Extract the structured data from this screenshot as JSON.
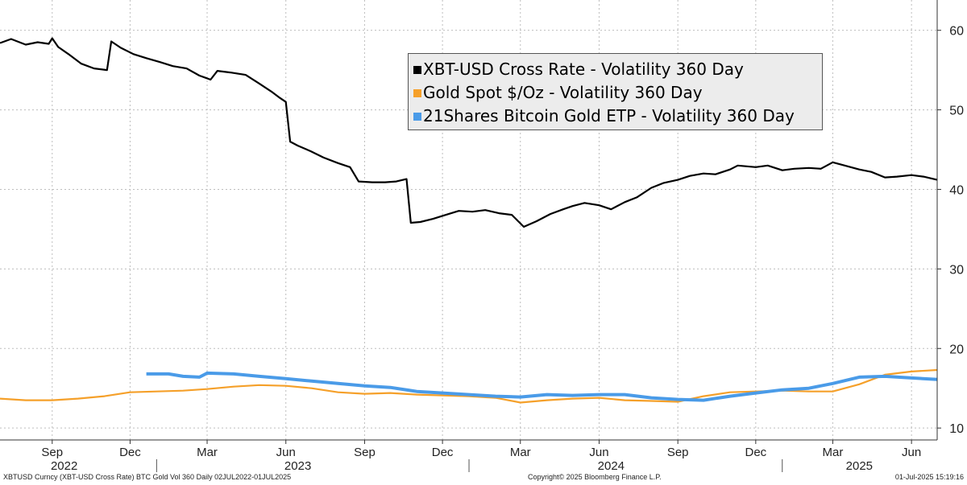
{
  "chart_data": {
    "type": "line",
    "ylim": [
      8.5,
      63
    ],
    "y_ticks": [
      "10",
      "20",
      "30",
      "40",
      "50",
      "60"
    ],
    "y_tick_values": [
      10,
      20,
      30,
      40,
      50,
      60
    ],
    "grid": true,
    "legend_position": "top-center",
    "x_start": "2022-07-02",
    "x_end": "2025-07-01",
    "x_month_ticks": [
      {
        "label": "Sep",
        "date": "2022-09-01"
      },
      {
        "label": "Dec",
        "date": "2022-12-01"
      },
      {
        "label": "Mar",
        "date": "2023-03-01"
      },
      {
        "label": "Jun",
        "date": "2023-06-01"
      },
      {
        "label": "Sep",
        "date": "2023-09-01"
      },
      {
        "label": "Dec",
        "date": "2023-12-01"
      },
      {
        "label": "Mar",
        "date": "2024-03-01"
      },
      {
        "label": "Jun",
        "date": "2024-06-01"
      },
      {
        "label": "Sep",
        "date": "2024-09-01"
      },
      {
        "label": "Dec",
        "date": "2024-12-01"
      },
      {
        "label": "Mar",
        "date": "2025-03-01"
      },
      {
        "label": "Jun",
        "date": "2025-06-01"
      }
    ],
    "x_year_labels": [
      {
        "label": "2022",
        "date": "2022-09-15"
      },
      {
        "label": "2023",
        "date": "2023-06-15"
      },
      {
        "label": "2024",
        "date": "2024-06-15"
      },
      {
        "label": "2025",
        "date": "2025-04-01"
      }
    ],
    "x_year_dividers": [
      "2023-01-01",
      "2024-01-01",
      "2025-01-01"
    ],
    "series": [
      {
        "name": "XBT-USD Cross Rate - Volatility 360 Day",
        "color": "#000000",
        "points": [
          [
            "2022-07-02",
            58.4
          ],
          [
            "2022-07-15",
            58.9
          ],
          [
            "2022-08-01",
            58.2
          ],
          [
            "2022-08-15",
            58.5
          ],
          [
            "2022-08-28",
            58.3
          ],
          [
            "2022-09-01",
            59.0
          ],
          [
            "2022-09-08",
            57.9
          ],
          [
            "2022-09-20",
            57.0
          ],
          [
            "2022-10-05",
            55.8
          ],
          [
            "2022-10-20",
            55.2
          ],
          [
            "2022-11-04",
            55.0
          ],
          [
            "2022-11-09",
            58.6
          ],
          [
            "2022-11-20",
            57.8
          ],
          [
            "2022-12-05",
            57.0
          ],
          [
            "2022-12-20",
            56.5
          ],
          [
            "2023-01-05",
            56.0
          ],
          [
            "2023-01-20",
            55.5
          ],
          [
            "2023-02-05",
            55.2
          ],
          [
            "2023-02-20",
            54.3
          ],
          [
            "2023-03-05",
            53.8
          ],
          [
            "2023-03-13",
            54.9
          ],
          [
            "2023-03-28",
            54.7
          ],
          [
            "2023-04-15",
            54.4
          ],
          [
            "2023-05-01",
            53.3
          ],
          [
            "2023-05-15",
            52.3
          ],
          [
            "2023-05-25",
            51.5
          ],
          [
            "2023-06-01",
            51.0
          ],
          [
            "2023-06-06",
            46.0
          ],
          [
            "2023-06-15",
            45.5
          ],
          [
            "2023-06-30",
            44.8
          ],
          [
            "2023-07-15",
            44.0
          ],
          [
            "2023-08-01",
            43.3
          ],
          [
            "2023-08-15",
            42.8
          ],
          [
            "2023-08-25",
            41.0
          ],
          [
            "2023-09-10",
            40.9
          ],
          [
            "2023-09-25",
            40.9
          ],
          [
            "2023-10-08",
            41.0
          ],
          [
            "2023-10-20",
            41.3
          ],
          [
            "2023-10-25",
            35.8
          ],
          [
            "2023-11-05",
            35.9
          ],
          [
            "2023-11-20",
            36.3
          ],
          [
            "2023-12-05",
            36.8
          ],
          [
            "2023-12-20",
            37.3
          ],
          [
            "2024-01-05",
            37.2
          ],
          [
            "2024-01-20",
            37.4
          ],
          [
            "2024-02-05",
            37.0
          ],
          [
            "2024-02-20",
            36.8
          ],
          [
            "2024-03-05",
            35.3
          ],
          [
            "2024-03-20",
            36.0
          ],
          [
            "2024-04-05",
            36.9
          ],
          [
            "2024-04-20",
            37.5
          ],
          [
            "2024-05-01",
            37.9
          ],
          [
            "2024-05-15",
            38.3
          ],
          [
            "2024-06-01",
            38.0
          ],
          [
            "2024-06-15",
            37.5
          ],
          [
            "2024-07-01",
            38.4
          ],
          [
            "2024-07-15",
            39.0
          ],
          [
            "2024-08-01",
            40.2
          ],
          [
            "2024-08-15",
            40.8
          ],
          [
            "2024-09-01",
            41.2
          ],
          [
            "2024-09-15",
            41.7
          ],
          [
            "2024-10-01",
            42.0
          ],
          [
            "2024-10-15",
            41.9
          ],
          [
            "2024-11-01",
            42.5
          ],
          [
            "2024-11-10",
            43.0
          ],
          [
            "2024-12-01",
            42.8
          ],
          [
            "2024-12-15",
            43.0
          ],
          [
            "2025-01-01",
            42.4
          ],
          [
            "2025-01-15",
            42.6
          ],
          [
            "2025-02-01",
            42.7
          ],
          [
            "2025-02-15",
            42.6
          ],
          [
            "2025-03-01",
            43.4
          ],
          [
            "2025-03-15",
            43.0
          ],
          [
            "2025-04-01",
            42.5
          ],
          [
            "2025-04-15",
            42.2
          ],
          [
            "2025-05-01",
            41.5
          ],
          [
            "2025-05-15",
            41.6
          ],
          [
            "2025-06-01",
            41.8
          ],
          [
            "2025-06-15",
            41.6
          ],
          [
            "2025-07-01",
            41.2
          ]
        ]
      },
      {
        "name": "Gold Spot $/Oz - Volatility 360 Day",
        "color": "#f5a02a",
        "points": [
          [
            "2022-07-02",
            13.7
          ],
          [
            "2022-08-01",
            13.5
          ],
          [
            "2022-09-01",
            13.5
          ],
          [
            "2022-10-01",
            13.7
          ],
          [
            "2022-11-01",
            14.0
          ],
          [
            "2022-12-01",
            14.5
          ],
          [
            "2023-01-01",
            14.6
          ],
          [
            "2023-02-01",
            14.7
          ],
          [
            "2023-03-01",
            14.9
          ],
          [
            "2023-04-01",
            15.2
          ],
          [
            "2023-05-01",
            15.4
          ],
          [
            "2023-06-01",
            15.3
          ],
          [
            "2023-07-01",
            15.0
          ],
          [
            "2023-08-01",
            14.5
          ],
          [
            "2023-09-01",
            14.3
          ],
          [
            "2023-10-01",
            14.4
          ],
          [
            "2023-11-01",
            14.2
          ],
          [
            "2023-12-01",
            14.1
          ],
          [
            "2024-01-01",
            14.0
          ],
          [
            "2024-02-01",
            13.8
          ],
          [
            "2024-03-01",
            13.2
          ],
          [
            "2024-04-01",
            13.5
          ],
          [
            "2024-05-01",
            13.7
          ],
          [
            "2024-06-01",
            13.8
          ],
          [
            "2024-07-01",
            13.5
          ],
          [
            "2024-08-01",
            13.4
          ],
          [
            "2024-09-01",
            13.3
          ],
          [
            "2024-10-01",
            14.0
          ],
          [
            "2024-11-01",
            14.5
          ],
          [
            "2024-12-01",
            14.6
          ],
          [
            "2025-01-01",
            14.7
          ],
          [
            "2025-02-01",
            14.6
          ],
          [
            "2025-03-01",
            14.6
          ],
          [
            "2025-04-01",
            15.5
          ],
          [
            "2025-05-01",
            16.7
          ],
          [
            "2025-06-01",
            17.1
          ],
          [
            "2025-07-01",
            17.3
          ]
        ]
      },
      {
        "name": "21Shares Bitcoin Gold ETP - Volatility 360 Day",
        "color": "#4a9be8",
        "points": [
          [
            "2022-12-20",
            16.8
          ],
          [
            "2023-01-15",
            16.8
          ],
          [
            "2023-02-01",
            16.5
          ],
          [
            "2023-02-20",
            16.4
          ],
          [
            "2023-03-01",
            16.9
          ],
          [
            "2023-04-01",
            16.8
          ],
          [
            "2023-05-01",
            16.5
          ],
          [
            "2023-06-01",
            16.2
          ],
          [
            "2023-07-01",
            15.9
          ],
          [
            "2023-08-01",
            15.6
          ],
          [
            "2023-09-01",
            15.3
          ],
          [
            "2023-10-01",
            15.1
          ],
          [
            "2023-11-01",
            14.6
          ],
          [
            "2023-12-01",
            14.4
          ],
          [
            "2024-01-01",
            14.2
          ],
          [
            "2024-02-01",
            14.0
          ],
          [
            "2024-03-01",
            13.9
          ],
          [
            "2024-04-01",
            14.2
          ],
          [
            "2024-05-01",
            14.1
          ],
          [
            "2024-06-01",
            14.2
          ],
          [
            "2024-07-01",
            14.2
          ],
          [
            "2024-08-01",
            13.8
          ],
          [
            "2024-09-01",
            13.6
          ],
          [
            "2024-10-01",
            13.5
          ],
          [
            "2024-11-01",
            14.0
          ],
          [
            "2024-12-01",
            14.4
          ],
          [
            "2025-01-01",
            14.8
          ],
          [
            "2025-02-01",
            15.0
          ],
          [
            "2025-03-01",
            15.6
          ],
          [
            "2025-04-01",
            16.4
          ],
          [
            "2025-05-01",
            16.5
          ],
          [
            "2025-06-01",
            16.3
          ],
          [
            "2025-07-01",
            16.1
          ]
        ]
      }
    ]
  },
  "footer": {
    "left": "XBTUSD Curncy (XBT-USD Cross Rate) BTC Gold Vol 360  Daily 02JUL2022-01JUL2025",
    "center": "Copyright© 2025 Bloomberg Finance L.P.",
    "right": "01-Jul-2025 15:19:16"
  }
}
